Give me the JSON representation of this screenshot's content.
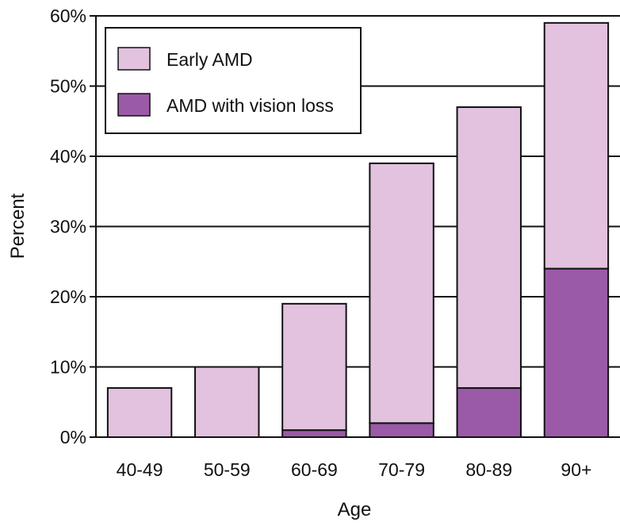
{
  "chart_data": {
    "type": "bar",
    "stacked": true,
    "categories": [
      "40-49",
      "50-59",
      "60-69",
      "70-79",
      "80-89",
      "90+"
    ],
    "series": [
      {
        "name": "AMD with vision loss",
        "values": [
          0,
          0,
          1,
          2,
          7,
          24
        ],
        "color": "#9b5aa8"
      },
      {
        "name": "Early AMD",
        "values": [
          7,
          10,
          18,
          37,
          40,
          35
        ],
        "color": "#e2c2de"
      }
    ],
    "totals": [
      7,
      10,
      19,
      39,
      47,
      59
    ],
    "xlabel": "Age",
    "ylabel": "Percent",
    "ylim": [
      0,
      60
    ],
    "yticks": [
      "0%",
      "10%",
      "20%",
      "30%",
      "40%",
      "50%",
      "60%"
    ],
    "grid": true,
    "legend": {
      "position": "top-left",
      "entries": [
        {
          "label": "Early AMD",
          "color": "#e2c2de"
        },
        {
          "label": "AMD with vision loss",
          "color": "#9b5aa8"
        }
      ]
    }
  }
}
